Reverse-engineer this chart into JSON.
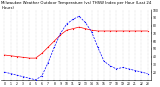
{
  "title": "Milwaukee Weather Outdoor Temperature (vs) THSW Index per Hour (Last 24 Hours)",
  "background_color": "#ffffff",
  "x_hours": [
    0,
    1,
    2,
    3,
    4,
    5,
    6,
    7,
    8,
    9,
    10,
    11,
    12,
    13,
    14,
    15,
    16,
    17,
    18,
    19,
    20,
    21,
    22,
    23
  ],
  "temp_y": [
    42,
    41,
    40,
    39,
    38,
    38,
    44,
    52,
    60,
    68,
    74,
    76,
    78,
    76,
    74,
    73,
    73,
    73,
    73,
    73,
    73,
    73,
    73,
    73
  ],
  "thsw_y": [
    20,
    18,
    16,
    14,
    12,
    10,
    15,
    32,
    52,
    70,
    82,
    88,
    92,
    84,
    72,
    52,
    34,
    28,
    24,
    26,
    24,
    22,
    20,
    18
  ],
  "temp_color": "#ff0000",
  "thsw_color": "#0000ff",
  "ylim_min": 10,
  "ylim_max": 100,
  "ytick_vals": [
    20,
    30,
    40,
    50,
    60,
    70,
    80,
    90,
    100
  ],
  "ytick_labels": [
    "20",
    "30",
    "40",
    "50",
    "60",
    "70",
    "80",
    "90",
    "100"
  ],
  "grid_color": "#bbbbbb",
  "title_fontsize": 2.8,
  "tick_fontsize": 2.2,
  "line_width": 0.5,
  "marker_size": 0.9
}
